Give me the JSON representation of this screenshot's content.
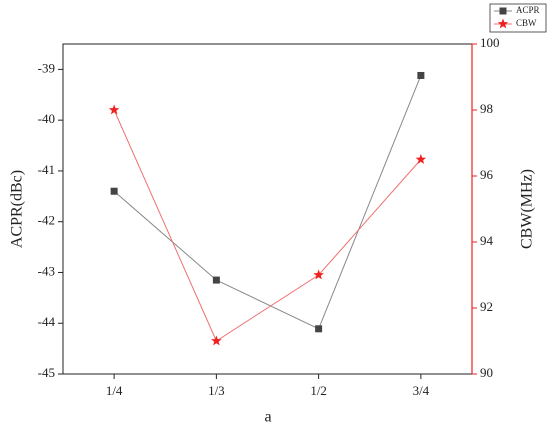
{
  "chart_data": {
    "type": "line",
    "x_label": "a",
    "y_label": "ACPR(dBc)",
    "y2_label": "CBW(MHz)",
    "categories": [
      "1/4",
      "1/3",
      "1/2",
      "3/4"
    ],
    "ylim": [
      -45,
      -38.5
    ],
    "yticks": [
      -45,
      -44,
      -43,
      -42,
      -41,
      -40,
      -39
    ],
    "y2lim": [
      90,
      100
    ],
    "y2ticks": [
      90,
      92,
      94,
      96,
      98,
      100
    ],
    "legend": "upper right",
    "series": [
      {
        "name": "ACPR",
        "color": "#444444",
        "line_color": "#888888",
        "marker": "square",
        "values": [
          -41.4,
          -43.15,
          -44.11,
          -39.12
        ]
      },
      {
        "name": "CBW",
        "color": "#ee2222",
        "line_color": "#f07070",
        "marker": "star",
        "axis": "y2",
        "values": [
          98,
          91,
          93,
          96.5
        ]
      }
    ]
  }
}
